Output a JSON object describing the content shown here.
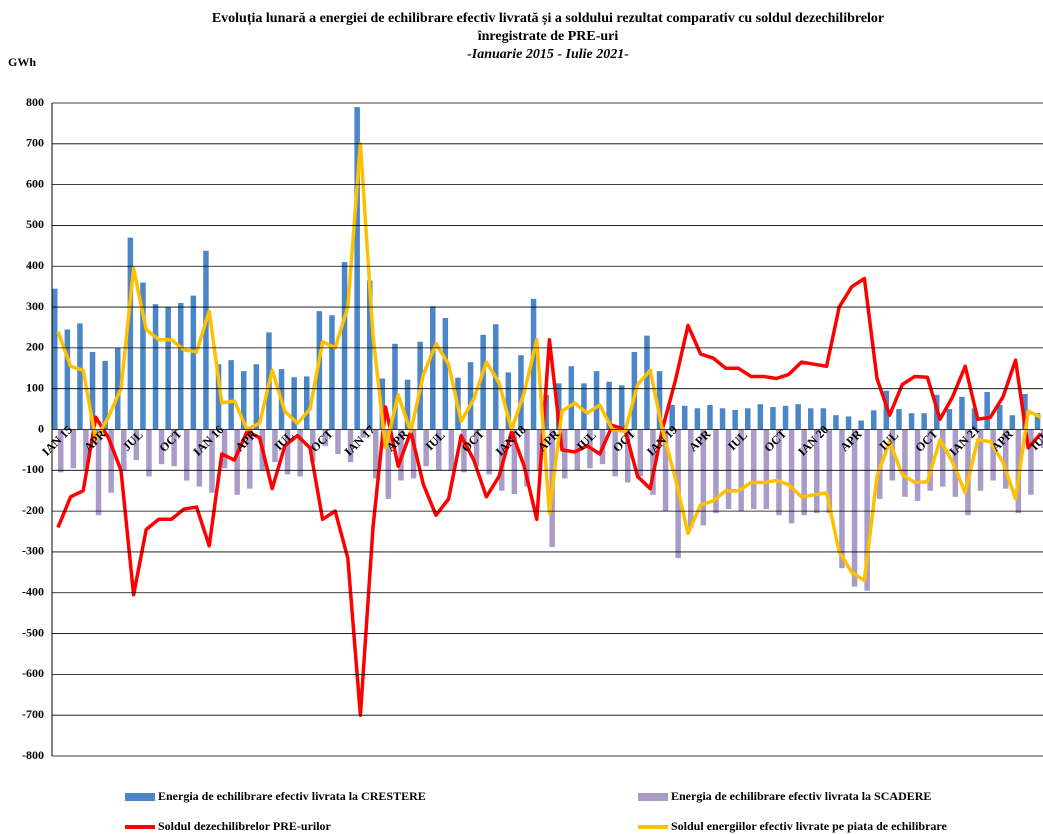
{
  "chart_data": {
    "type": "bar-line",
    "title": "Evoluția lunară a energiei de echilibrare efectiv livrată și a soldului rezultat comparativ cu soldul dezechilibrelor",
    "title2": "înregistrate de PRE-uri",
    "subtitle": "-Ianuarie 2015 - Iulie 2021-",
    "y_label": "GWh",
    "ylim": [
      -800,
      800
    ],
    "yticks": [
      -800,
      -700,
      -600,
      -500,
      -400,
      -300,
      -200,
      -100,
      0,
      100,
      200,
      300,
      400,
      500,
      600,
      700,
      800
    ],
    "grid": true,
    "categories": [
      "IAN 15",
      null,
      null,
      "APR",
      null,
      null,
      "JUL",
      null,
      null,
      "OCT",
      null,
      null,
      "IAN 16",
      null,
      null,
      "APR",
      null,
      null,
      "IUL",
      null,
      null,
      "OCT",
      null,
      null,
      "IAN 17",
      null,
      null,
      "APR",
      null,
      null,
      "IUL",
      null,
      null,
      "OCT",
      null,
      null,
      "IAN 18",
      null,
      null,
      "APR",
      null,
      null,
      "IUL",
      null,
      null,
      "OCT",
      null,
      null,
      "IAN 19",
      null,
      null,
      "APR",
      null,
      null,
      "IUL",
      null,
      null,
      "OCT",
      null,
      null,
      "IAN 20",
      null,
      null,
      "APR",
      null,
      null,
      "IUL",
      null,
      null,
      "OCT",
      null,
      null,
      "IAN 21",
      null,
      null,
      "APR",
      null,
      null,
      "IUL"
    ],
    "series": [
      {
        "name": "Energia de echilibrare efectiv livrata la CRESTERE",
        "color": "#4a86c8",
        "kind": "bar",
        "values": [
          345,
          245,
          260,
          190,
          168,
          200,
          470,
          360,
          307,
          300,
          310,
          328,
          438,
          160,
          170,
          143,
          160,
          238,
          148,
          128,
          130,
          290,
          280,
          410,
          790,
          365,
          125,
          210,
          122,
          215,
          302,
          273,
          127,
          165,
          232,
          258,
          140,
          182,
          320,
          85,
          113,
          155,
          113,
          143,
          117,
          108,
          190,
          230,
          143,
          60,
          58,
          52,
          60,
          52,
          48,
          52,
          62,
          55,
          58,
          62,
          52,
          52,
          35,
          32,
          22,
          47,
          95,
          50,
          40,
          40,
          85,
          50,
          80,
          52,
          92,
          60,
          35,
          87,
          40
        ]
      },
      {
        "name": "Energia de echilibrare efectiv livrata la SCADERE",
        "color": "#a99cc9",
        "kind": "bar",
        "values": [
          -105,
          -95,
          -100,
          -210,
          -155,
          -100,
          -75,
          -115,
          -85,
          -90,
          -125,
          -140,
          -155,
          -95,
          -160,
          -145,
          -100,
          -80,
          -110,
          -115,
          -80,
          -40,
          -60,
          -80,
          -20,
          -120,
          -170,
          -125,
          -120,
          -90,
          -100,
          -100,
          -105,
          -90,
          -110,
          -150,
          -158,
          -140,
          -100,
          -288,
          -120,
          -100,
          -95,
          -85,
          -115,
          -130,
          -115,
          -160,
          -200,
          -315,
          -240,
          -235,
          -205,
          -195,
          -200,
          -195,
          -195,
          -210,
          -230,
          -210,
          -205,
          -205,
          -340,
          -385,
          -395,
          -170,
          -125,
          -165,
          -175,
          -150,
          -140,
          -165,
          -210,
          -150,
          -125,
          -145,
          -205,
          -160,
          -45
        ]
      },
      {
        "name": "Soldul dezechilibrelor PRE-urilor",
        "color": "#ff0000",
        "kind": "line",
        "values": [
          -240,
          -165,
          -150,
          30,
          -20,
          -100,
          -405,
          -245,
          -220,
          -220,
          -195,
          -190,
          -285,
          -60,
          -75,
          -5,
          -20,
          -145,
          -40,
          -15,
          -45,
          -220,
          -200,
          -315,
          -700,
          -240,
          55,
          -90,
          -5,
          -135,
          -210,
          -170,
          -15,
          -75,
          -165,
          -115,
          -5,
          -90,
          -220,
          220,
          -50,
          -55,
          -40,
          -60,
          10,
          0,
          -115,
          -145,
          5,
          120,
          255,
          185,
          175,
          150,
          150,
          130,
          130,
          125,
          135,
          165,
          160,
          155,
          300,
          350,
          370,
          125,
          35,
          110,
          130,
          128,
          25,
          80,
          155,
          25,
          30,
          80,
          170,
          -45,
          -10
        ]
      },
      {
        "name": "Soldul energiilor efectiv livrate pe piata de echilibrare",
        "color": "#ffc000",
        "kind": "line",
        "values": [
          240,
          155,
          145,
          -25,
          30,
          100,
          395,
          245,
          220,
          220,
          195,
          190,
          290,
          65,
          70,
          0,
          15,
          145,
          45,
          15,
          50,
          215,
          200,
          300,
          700,
          230,
          -45,
          85,
          -5,
          135,
          210,
          160,
          20,
          75,
          165,
          115,
          0,
          90,
          220,
          -205,
          45,
          65,
          40,
          60,
          0,
          -5,
          110,
          145,
          -5,
          -120,
          -255,
          -185,
          -175,
          -150,
          -150,
          -130,
          -130,
          -125,
          -135,
          -165,
          -160,
          -155,
          -300,
          -350,
          -370,
          -115,
          -30,
          -110,
          -130,
          -128,
          -25,
          -80,
          -155,
          -25,
          -30,
          -80,
          -170,
          45,
          30
        ]
      }
    ]
  }
}
